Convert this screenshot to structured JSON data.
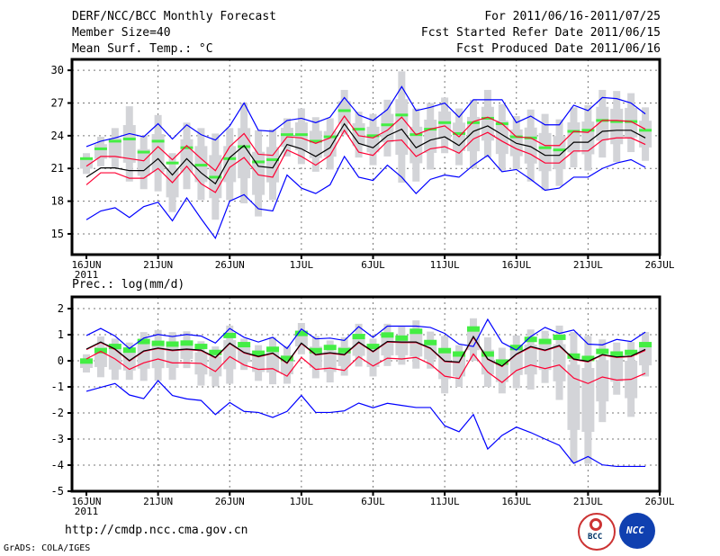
{
  "header": {
    "title": "DERF/NCC/BCC Monthly Forecast",
    "member": "Member Size=40",
    "variable": "Mean Surf. Temp.: °C",
    "period": "For 2011/06/16-2011/07/25",
    "refer": "Fcst Started Refer Date 2011/06/15",
    "produced": "Fcst Produced Date 2011/06/16"
  },
  "footer": {
    "url": "http://cmdp.ncc.cma.gov.cn",
    "credit": "GrADS: COLA/IGES",
    "logo1": "BCC",
    "logo2": "NCC"
  },
  "colors": {
    "max_min": "#0000ff",
    "spread": "#ff0033",
    "mean": "#000000",
    "marker": "#44ee44",
    "box": "#d3d4d8"
  },
  "chart_data": [
    {
      "type": "line",
      "title": "Mean Surf. Temp.: °C",
      "xticks": [
        "16JUN",
        "21JUN",
        "26JUN",
        "1JUL",
        "6JUL",
        "11JUL",
        "16JUL",
        "21JUL",
        "26JUL"
      ],
      "year": "2011",
      "ylim": [
        13.1,
        31.0
      ],
      "yticks": [
        15,
        18,
        21,
        24,
        27,
        30
      ],
      "grid": true,
      "series": {
        "max": [
          23.0,
          23.5,
          23.8,
          24.2,
          23.9,
          25.1,
          23.7,
          25.0,
          24.1,
          23.6,
          24.9,
          27.0,
          24.5,
          24.4,
          25.4,
          25.6,
          25.2,
          25.7,
          27.5,
          25.9,
          25.4,
          26.4,
          28.5,
          26.3,
          26.6,
          27.0,
          25.7,
          27.3,
          27.3,
          27.3,
          25.2,
          25.8,
          25.0,
          25.0,
          26.8,
          26.3,
          27.5,
          27.4,
          27.0,
          26.0
        ],
        "upper": [
          21.2,
          22.1,
          22.1,
          21.9,
          21.7,
          23.0,
          21.8,
          23.1,
          21.9,
          20.8,
          23.0,
          24.2,
          22.3,
          22.2,
          23.9,
          23.8,
          23.3,
          23.8,
          25.8,
          24.0,
          23.8,
          24.5,
          25.7,
          24.1,
          24.6,
          24.9,
          23.9,
          25.3,
          25.7,
          25.1,
          23.9,
          23.8,
          23.1,
          23.1,
          24.4,
          24.3,
          25.4,
          25.4,
          25.3,
          24.6
        ],
        "mean": [
          20.2,
          21.05,
          21.05,
          20.8,
          20.8,
          21.9,
          20.4,
          21.9,
          20.6,
          19.6,
          22.0,
          23.1,
          21.2,
          21.05,
          23.2,
          22.8,
          22.1,
          22.9,
          25.1,
          23.3,
          22.9,
          24.0,
          24.6,
          22.9,
          23.6,
          23.9,
          23.1,
          24.4,
          24.9,
          24.1,
          23.3,
          23.0,
          22.2,
          22.2,
          23.4,
          23.4,
          24.4,
          24.5,
          24.5,
          23.8
        ],
        "lower": [
          19.5,
          20.6,
          20.6,
          20.1,
          20.1,
          21.0,
          19.7,
          21.2,
          19.6,
          18.8,
          21.1,
          22.0,
          20.4,
          20.2,
          22.7,
          22.1,
          21.3,
          22.2,
          24.5,
          22.5,
          22.2,
          23.5,
          23.6,
          22.1,
          22.8,
          23.0,
          22.4,
          23.7,
          24.3,
          23.5,
          22.8,
          22.3,
          21.5,
          21.5,
          22.6,
          22.6,
          23.6,
          23.8,
          23.8,
          23.2
        ],
        "min": [
          16.3,
          17.1,
          17.4,
          16.5,
          17.5,
          17.9,
          16.2,
          18.3,
          16.4,
          14.6,
          18.0,
          18.6,
          17.3,
          17.1,
          20.4,
          19.2,
          18.7,
          19.5,
          22.1,
          20.2,
          19.9,
          21.3,
          20.2,
          18.7,
          20.0,
          20.4,
          20.2,
          21.3,
          22.2,
          20.7,
          20.9,
          20.0,
          19.0,
          19.2,
          20.2,
          20.2,
          21.0,
          21.5,
          21.8,
          21.1
        ],
        "marker": [
          21.9,
          22.8,
          23.5,
          23.7,
          22.5,
          23.5,
          21.5,
          22.9,
          21.3,
          20.2,
          21.9,
          23.0,
          21.6,
          21.8,
          24.1,
          24.1,
          23.5,
          23.9,
          26.3,
          24.6,
          24.0,
          25.0,
          25.9,
          24.1,
          24.6,
          25.2,
          24.2,
          25.2,
          25.6,
          25.1,
          23.9,
          23.8,
          22.9,
          22.7,
          24.4,
          24.5,
          25.4,
          25.3,
          25.3,
          24.5
        ],
        "box_low": [
          20.5,
          21.2,
          21.0,
          19.8,
          19.1,
          18.9,
          17.0,
          19.1,
          18.1,
          16.3,
          18.1,
          17.8,
          16.6,
          18.1,
          22.1,
          21.4,
          20.7,
          20.9,
          24.1,
          22.0,
          21.3,
          22.1,
          19.7,
          19.8,
          20.9,
          22.4,
          21.3,
          21.0,
          22.0,
          20.8,
          20.9,
          19.8,
          19.0,
          19.4,
          21.1,
          20.8,
          22.0,
          21.6,
          22.5,
          21.7
        ],
        "box_high": [
          22.4,
          23.9,
          24.7,
          26.7,
          24.0,
          25.9,
          22.4,
          25.2,
          24.7,
          24.2,
          24.7,
          27.0,
          24.5,
          24.6,
          25.6,
          26.5,
          25.7,
          25.6,
          28.2,
          26.2,
          26.0,
          27.3,
          29.9,
          26.5,
          27.0,
          27.5,
          26.5,
          27.3,
          28.2,
          26.9,
          25.8,
          26.4,
          26.0,
          25.5,
          26.6,
          26.8,
          28.2,
          28.1,
          27.9,
          26.6
        ]
      }
    },
    {
      "type": "line",
      "title": "Prec.: log(mm/d)",
      "xticks": [
        "16JUN",
        "21JUN",
        "26JUN",
        "1JUL",
        "6JUL",
        "11JUL",
        "16JUL",
        "21JUL",
        "26JUL"
      ],
      "year": "2011",
      "ylim": [
        -5,
        2.45
      ],
      "yticks": [
        -5,
        -4,
        -3,
        -2,
        -1,
        0,
        1,
        2
      ],
      "grid": true,
      "series": {
        "max": [
          0.97,
          1.24,
          0.95,
          0.47,
          0.87,
          1.01,
          0.93,
          1.01,
          0.95,
          0.68,
          1.24,
          0.9,
          0.72,
          0.9,
          0.47,
          1.22,
          0.84,
          0.87,
          0.78,
          1.31,
          0.9,
          1.33,
          1.33,
          1.33,
          1.28,
          1.05,
          0.64,
          0.55,
          1.59,
          0.7,
          0.41,
          0.93,
          1.28,
          1.05,
          1.18,
          0.64,
          0.61,
          0.82,
          0.74,
          1.1
        ],
        "upper": [
          0.43,
          0.7,
          0.43,
          -0.01,
          0.36,
          0.47,
          0.39,
          0.43,
          0.39,
          0.11,
          0.66,
          0.3,
          0.15,
          0.28,
          -0.1,
          0.66,
          0.22,
          0.29,
          0.22,
          0.7,
          0.34,
          0.72,
          0.7,
          0.7,
          0.47,
          -0.03,
          -0.07,
          0.9,
          0.05,
          -0.22,
          0.24,
          0.52,
          0.39,
          0.56,
          0.05,
          -0.04,
          0.22,
          0.13,
          0.16,
          0.4
        ],
        "mean": [
          0.45,
          0.72,
          0.45,
          0.01,
          0.38,
          0.49,
          0.41,
          0.45,
          0.41,
          0.13,
          0.68,
          0.32,
          0.17,
          0.3,
          -0.08,
          0.68,
          0.24,
          0.31,
          0.24,
          0.72,
          0.36,
          0.74,
          0.72,
          0.72,
          0.49,
          -0.01,
          -0.05,
          0.93,
          0.07,
          -0.2,
          0.26,
          0.55,
          0.41,
          0.59,
          0.07,
          -0.02,
          0.24,
          0.15,
          0.18,
          0.44
        ],
        "lower": [
          0.07,
          0.36,
          0.07,
          -0.33,
          -0.08,
          0.07,
          -0.08,
          -0.08,
          -0.1,
          -0.41,
          0.16,
          -0.16,
          -0.33,
          -0.3,
          -0.59,
          0.13,
          -0.33,
          -0.28,
          -0.37,
          0.16,
          -0.2,
          0.1,
          0.07,
          0.13,
          -0.13,
          -0.59,
          -0.68,
          0.26,
          -0.43,
          -0.83,
          -0.37,
          -0.16,
          -0.3,
          -0.16,
          -0.66,
          -0.87,
          -0.62,
          -0.74,
          -0.71,
          -0.48
        ],
        "min": [
          -1.17,
          -1.02,
          -0.87,
          -1.31,
          -1.45,
          -0.76,
          -1.33,
          -1.46,
          -1.52,
          -2.06,
          -1.6,
          -1.94,
          -1.98,
          -2.17,
          -1.94,
          -1.33,
          -1.98,
          -1.98,
          -1.92,
          -1.62,
          -1.8,
          -1.63,
          -1.71,
          -1.79,
          -1.79,
          -2.49,
          -2.72,
          -2.06,
          -3.38,
          -2.86,
          -2.54,
          -2.75,
          -3.0,
          -3.24,
          -3.93,
          -3.67,
          -3.99,
          -4.05,
          -4.05,
          -4.05
        ],
        "marker": [
          -0.01,
          0.39,
          0.55,
          0.41,
          0.74,
          0.67,
          0.64,
          0.68,
          0.55,
          0.32,
          0.97,
          0.62,
          0.29,
          0.44,
          0.09,
          1.05,
          0.39,
          0.51,
          0.39,
          0.93,
          0.55,
          0.99,
          0.87,
          1.13,
          0.7,
          0.39,
          0.26,
          1.22,
          0.26,
          -0.05,
          0.51,
          0.82,
          0.74,
          0.9,
          0.18,
          0.09,
          0.36,
          0.26,
          0.32,
          0.62
        ],
        "box_low": [
          -0.45,
          -0.63,
          -0.73,
          -0.73,
          -0.77,
          -0.77,
          -0.73,
          -0.28,
          -0.95,
          -0.98,
          -0.88,
          -0.35,
          -0.77,
          -0.9,
          -0.88,
          0.25,
          -0.67,
          -0.83,
          -0.57,
          -0.22,
          -0.6,
          -0.2,
          -0.15,
          -0.3,
          -0.3,
          -1.25,
          -1.0,
          0.0,
          -1.0,
          -1.25,
          -1.05,
          -1.1,
          -0.85,
          -1.5,
          -3.9,
          -3.95,
          -2.35,
          -1.3,
          -2.15,
          -0.6
        ],
        "box_high": [
          0.25,
          0.93,
          0.85,
          0.7,
          1.1,
          1.18,
          1.1,
          1.13,
          0.75,
          0.55,
          1.35,
          0.85,
          0.6,
          0.9,
          0.57,
          1.45,
          0.95,
          0.78,
          0.9,
          1.42,
          0.85,
          1.42,
          1.3,
          1.55,
          1.12,
          0.95,
          0.6,
          1.63,
          0.9,
          0.5,
          0.97,
          1.2,
          1.15,
          1.35,
          1.1,
          0.95,
          0.82,
          0.7,
          0.72,
          1.1
        ]
      }
    }
  ]
}
